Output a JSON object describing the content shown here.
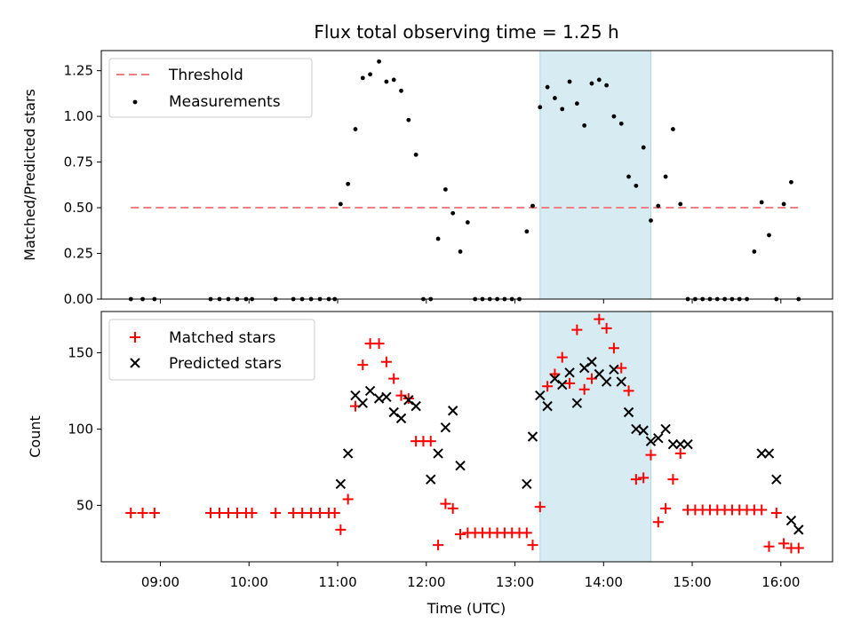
{
  "chart_data": [
    {
      "type": "scatter",
      "title": "Flux total observing time = 1.25 h",
      "xlabel": "",
      "ylabel": "Matched/Predicted stars",
      "ylim": [
        0,
        1.36
      ],
      "yticks": [
        "0.00",
        "0.25",
        "0.50",
        "0.75",
        "1.00",
        "1.25"
      ],
      "highlight_span": {
        "x_start": "13:17",
        "x_end": "14:32",
        "color": "#add8e6"
      },
      "threshold": {
        "name": "Threshold",
        "value": 0.5,
        "x_start": "08:40",
        "x_end": "16:12",
        "color": "#f08080",
        "style": "dashed"
      },
      "legend": {
        "position": "top-left",
        "entries": [
          "Threshold",
          "Measurements"
        ]
      },
      "series": [
        {
          "name": "Measurements",
          "marker": "dot",
          "color": "#000000",
          "x": [
            "08:40",
            "08:48",
            "08:56",
            "09:34",
            "09:40",
            "09:46",
            "09:52",
            "09:58",
            "10:02",
            "10:18",
            "10:30",
            "10:36",
            "10:42",
            "10:48",
            "10:54",
            "10:58",
            "11:02",
            "11:07",
            "11:12",
            "11:17",
            "11:22",
            "11:28",
            "11:33",
            "11:38",
            "11:43",
            "11:48",
            "11:53",
            "11:58",
            "12:03",
            "12:08",
            "12:13",
            "12:18",
            "12:23",
            "12:28",
            "12:33",
            "12:38",
            "12:43",
            "12:48",
            "12:53",
            "12:58",
            "13:03",
            "13:08",
            "13:12",
            "13:17",
            "13:22",
            "13:27",
            "13:32",
            "13:37",
            "13:42",
            "13:47",
            "13:52",
            "13:57",
            "14:02",
            "14:07",
            "14:12",
            "14:17",
            "14:22",
            "14:27",
            "14:32",
            "14:37",
            "14:42",
            "14:47",
            "14:52",
            "14:57",
            "15:02",
            "15:07",
            "15:12",
            "15:17",
            "15:22",
            "15:27",
            "15:32",
            "15:37",
            "15:42",
            "15:47",
            "15:52",
            "15:57",
            "16:02",
            "16:07",
            "16:12"
          ],
          "y": [
            0,
            0,
            0,
            0,
            0,
            0,
            0,
            0,
            0,
            0,
            0,
            0,
            0,
            0,
            0,
            0,
            0.52,
            0.63,
            0.93,
            1.21,
            1.23,
            1.3,
            1.19,
            1.2,
            1.14,
            0.98,
            0.79,
            0,
            0,
            0.33,
            0.6,
            0.47,
            0.26,
            0.42,
            0,
            0,
            0,
            0,
            0,
            0,
            0,
            0.37,
            0.51,
            1.05,
            1.16,
            1.1,
            1.04,
            1.19,
            1.07,
            0.95,
            1.18,
            1.2,
            1.17,
            1.0,
            0.96,
            0.67,
            0.62,
            0.83,
            0.43,
            0.51,
            0.67,
            0.93,
            0.52,
            0,
            0,
            0,
            0,
            0,
            0,
            0,
            0,
            0,
            0.26,
            0.53,
            0.35,
            0,
            0.52,
            0.64,
            0
          ]
        }
      ]
    },
    {
      "type": "scatter",
      "title": "",
      "xlabel": "Time (UTC)",
      "ylabel": "Count",
      "ylim": [
        13,
        177
      ],
      "yticks": [
        "50",
        "100",
        "150"
      ],
      "xticks": [
        "09:00",
        "10:00",
        "11:00",
        "12:00",
        "13:00",
        "14:00",
        "15:00",
        "16:00"
      ],
      "xlim": [
        "08:20",
        "16:35"
      ],
      "highlight_span": {
        "x_start": "13:17",
        "x_end": "14:32",
        "color": "#add8e6"
      },
      "legend": {
        "position": "top-left",
        "entries": [
          "Matched stars",
          "Predicted stars"
        ]
      },
      "series": [
        {
          "name": "Matched stars",
          "marker": "plus",
          "color": "#ff0000",
          "x": [
            "08:40",
            "08:48",
            "08:56",
            "09:34",
            "09:40",
            "09:46",
            "09:52",
            "09:58",
            "10:02",
            "10:18",
            "10:30",
            "10:36",
            "10:42",
            "10:48",
            "10:54",
            "10:58",
            "11:02",
            "11:07",
            "11:12",
            "11:17",
            "11:22",
            "11:28",
            "11:33",
            "11:38",
            "11:43",
            "11:48",
            "11:53",
            "11:58",
            "12:03",
            "12:08",
            "12:13",
            "12:18",
            "12:23",
            "12:28",
            "12:33",
            "12:38",
            "12:43",
            "12:48",
            "12:53",
            "12:58",
            "13:03",
            "13:08",
            "13:12",
            "13:17",
            "13:22",
            "13:27",
            "13:32",
            "13:37",
            "13:42",
            "13:47",
            "13:52",
            "13:57",
            "14:02",
            "14:07",
            "14:12",
            "14:17",
            "14:22",
            "14:27",
            "14:32",
            "14:37",
            "14:42",
            "14:47",
            "14:52",
            "14:57",
            "15:02",
            "15:07",
            "15:12",
            "15:17",
            "15:22",
            "15:27",
            "15:32",
            "15:37",
            "15:42",
            "15:47",
            "15:52",
            "15:57",
            "16:02",
            "16:07",
            "16:12"
          ],
          "y": [
            45,
            45,
            45,
            45,
            45,
            45,
            45,
            45,
            45,
            45,
            45,
            45,
            45,
            45,
            45,
            45,
            34,
            54,
            115,
            142,
            156,
            156,
            144,
            133,
            122,
            120,
            92,
            92,
            92,
            24,
            51,
            48,
            31,
            32,
            32,
            32,
            32,
            32,
            32,
            32,
            32,
            32,
            24,
            49,
            128,
            136,
            147,
            130,
            165,
            126,
            133,
            172,
            166,
            153,
            140,
            125,
            67,
            68,
            83,
            39,
            48,
            67,
            84,
            47,
            47,
            47,
            47,
            47,
            47,
            47,
            47,
            47,
            47,
            47,
            23,
            45,
            25,
            22,
            22
          ]
        },
        {
          "name": "Predicted stars",
          "marker": "x",
          "color": "#000000",
          "x": [
            "11:02",
            "11:07",
            "11:12",
            "11:17",
            "11:22",
            "11:28",
            "11:33",
            "11:38",
            "11:43",
            "11:48",
            "11:53",
            "12:03",
            "12:08",
            "12:13",
            "12:18",
            "12:23",
            "13:08",
            "13:12",
            "13:17",
            "13:22",
            "13:27",
            "13:32",
            "13:37",
            "13:42",
            "13:47",
            "13:52",
            "13:57",
            "14:02",
            "14:07",
            "14:12",
            "14:17",
            "14:22",
            "14:27",
            "14:32",
            "14:37",
            "14:42",
            "14:47",
            "14:52",
            "14:57",
            "15:47",
            "15:52",
            "15:57",
            "16:07",
            "16:12"
          ],
          "y": [
            64,
            84,
            122,
            117,
            125,
            120,
            121,
            111,
            107,
            119,
            115,
            67,
            84,
            101,
            112,
            76,
            64,
            95,
            122,
            115,
            133,
            129,
            137,
            117,
            140,
            144,
            136,
            131,
            139,
            131,
            111,
            100,
            99,
            92,
            94,
            100,
            90,
            90,
            90,
            84,
            84,
            67,
            40,
            34
          ]
        }
      ]
    }
  ]
}
